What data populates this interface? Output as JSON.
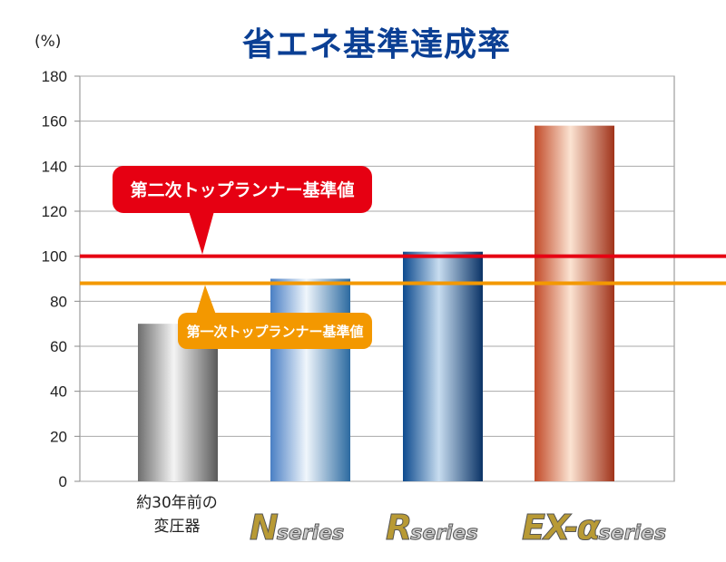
{
  "chart_data": {
    "type": "bar",
    "title": "省エネ基準達成率",
    "ylabel": "(%)",
    "ylim": [
      0,
      180
    ],
    "yticks": [
      0,
      20,
      40,
      60,
      80,
      100,
      120,
      140,
      160,
      180
    ],
    "grid": true,
    "categories": [
      "約30年前の変圧器",
      "N series",
      "R series",
      "EX-α series"
    ],
    "category_labels": [
      {
        "line1": "約30年前の",
        "line2": "変圧器"
      },
      {
        "logo": "N",
        "suffix": "series"
      },
      {
        "logo": "R",
        "suffix": "series"
      },
      {
        "logo": "EX-α",
        "suffix": "series"
      }
    ],
    "values": [
      70,
      90,
      102,
      158
    ],
    "bar_colors": [
      [
        "#6e6e6e",
        "#f4f4f4",
        "#5a5a5a"
      ],
      [
        "#4a7fc4",
        "#f0f6fc",
        "#2c6aa0"
      ],
      [
        "#0d4a8e",
        "#c8ddf0",
        "#0a3366"
      ],
      [
        "#c24a28",
        "#fbe3d2",
        "#a0331a"
      ]
    ],
    "reference_lines": [
      {
        "label": "第二次トップランナー基準値",
        "value": 100,
        "color": "#e60012"
      },
      {
        "label": "第一次トップランナー基準値",
        "value": 88,
        "color": "#f39800"
      }
    ]
  }
}
